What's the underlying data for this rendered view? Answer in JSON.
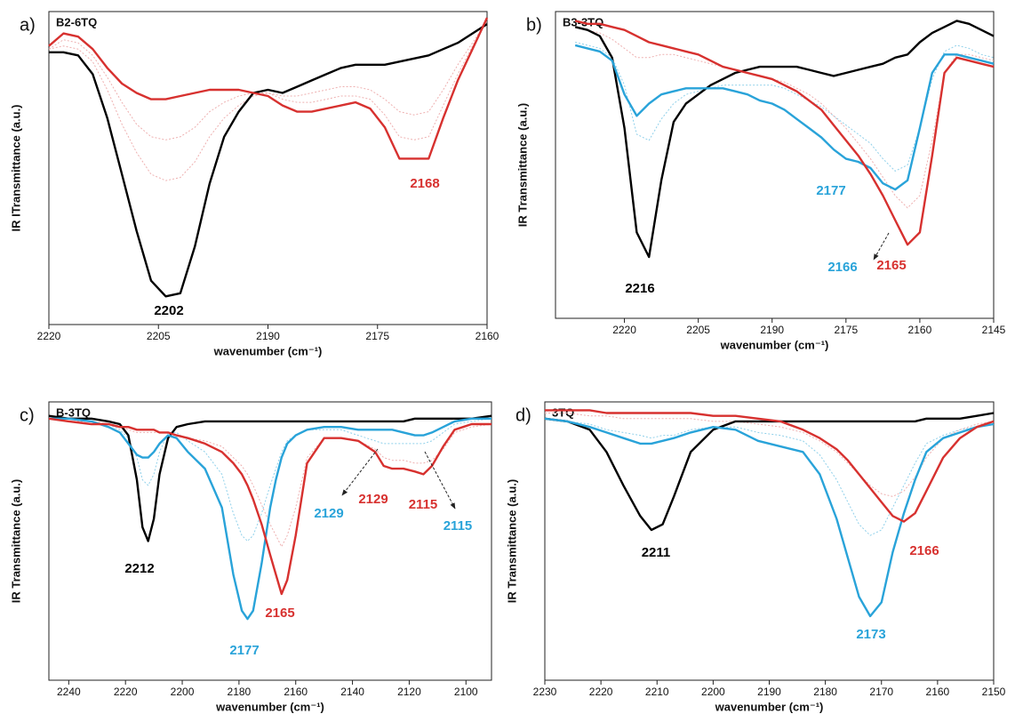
{
  "chart_data": [
    {
      "type": "line",
      "panel_label": "a)",
      "title": "B2-6TQ",
      "x_label": "wavenumber (cm⁻¹)",
      "y_label": "IR ITransmittance (a.u.)",
      "x": [
        2220,
        2218,
        2216,
        2214,
        2212,
        2210,
        2208,
        2206,
        2204,
        2202,
        2200,
        2198,
        2196,
        2194,
        2192,
        2190,
        2188,
        2186,
        2184,
        2182,
        2180,
        2178,
        2176,
        2174,
        2172,
        2170,
        2168,
        2166,
        2164,
        2162,
        2160
      ],
      "xlim": [
        2220,
        2160
      ],
      "xticks": [
        2220,
        2205,
        2190,
        2175,
        2160
      ],
      "ylim": [
        0,
        100
      ],
      "series": [
        {
          "color": "#eeb0b0",
          "style": "dotted",
          "values": [
            88,
            89,
            88,
            84,
            75,
            64,
            55,
            48,
            46,
            47,
            52,
            60,
            66,
            70,
            73,
            74,
            73,
            73,
            74,
            75,
            76,
            76,
            75,
            72,
            68,
            67,
            68,
            75,
            83,
            90,
            97
          ]
        },
        {
          "color": "#eeb0b0",
          "style": "dotted",
          "values": [
            88,
            91,
            90,
            86,
            79,
            71,
            64,
            60,
            59,
            60,
            63,
            68,
            71,
            73,
            74,
            74,
            72,
            71,
            71,
            72,
            73,
            73,
            72,
            67,
            60,
            59,
            60,
            70,
            80,
            89,
            97
          ]
        },
        {
          "color": "#000000",
          "style": "solid",
          "values": [
            87,
            87,
            86,
            80,
            66,
            48,
            30,
            14,
            9,
            10,
            25,
            45,
            60,
            68,
            74,
            75,
            74,
            76,
            78,
            80,
            82,
            83,
            83,
            83,
            84,
            85,
            86,
            88,
            90,
            93,
            96
          ]
        },
        {
          "color": "#d7312f",
          "style": "solid",
          "values": [
            89,
            93,
            92,
            88,
            82,
            77,
            74,
            72,
            72,
            73,
            74,
            75,
            75,
            75,
            74,
            73,
            70,
            68,
            68,
            69,
            70,
            71,
            69,
            63,
            53,
            53,
            53,
            66,
            78,
            88,
            98
          ]
        }
      ],
      "annotations": [
        {
          "text": "2202",
          "color": "#000000"
        },
        {
          "text": "2168",
          "color": "#d7312f"
        }
      ]
    },
    {
      "type": "line",
      "panel_label": "b)",
      "title": "B3-3TQ",
      "x_label": "wavenumber (cm⁻¹)",
      "y_label": "IR Transmittance (a.u.)",
      "x": [
        2230,
        2227.5,
        2225,
        2222.5,
        2220,
        2217.5,
        2215,
        2212.5,
        2210,
        2207.5,
        2205,
        2202.5,
        2200,
        2197.5,
        2195,
        2192.5,
        2190,
        2187.5,
        2185,
        2182.5,
        2180,
        2177.5,
        2175,
        2172.5,
        2170,
        2167.5,
        2165,
        2162.5,
        2160,
        2157.5,
        2155,
        2152.5,
        2150,
        2147.5,
        2145
      ],
      "xlim": [
        2234,
        2145
      ],
      "xticks": [
        2220,
        2205,
        2190,
        2175,
        2160,
        2145
      ],
      "ylim": [
        0,
        100
      ],
      "series": [
        {
          "color": "#8fd0ea",
          "style": "dotted",
          "values": [
            90,
            89,
            88,
            85,
            76,
            60,
            58,
            65,
            70,
            73,
            74,
            75,
            76,
            76,
            76,
            76,
            76,
            75,
            73,
            71,
            69,
            66,
            63,
            60,
            57,
            52,
            48,
            50,
            62,
            78,
            87,
            89,
            88,
            86,
            85
          ]
        },
        {
          "color": "#eeb0b0",
          "style": "dotted",
          "values": [
            95,
            94,
            93,
            91,
            88,
            85,
            85,
            86,
            86,
            85,
            84,
            83,
            82,
            81,
            80,
            79,
            78,
            77,
            75,
            73,
            70,
            66,
            62,
            57,
            52,
            46,
            40,
            36,
            40,
            58,
            80,
            86,
            86,
            85,
            84
          ]
        },
        {
          "color": "#000000",
          "style": "solid",
          "values": [
            95,
            94,
            92,
            85,
            62,
            28,
            20,
            45,
            64,
            70,
            73,
            76,
            78,
            80,
            81,
            82,
            82,
            82,
            82,
            81,
            80,
            79,
            80,
            81,
            82,
            83,
            85,
            86,
            90,
            93,
            95,
            97,
            96,
            94,
            92
          ]
        },
        {
          "color": "#29a3d9",
          "style": "solid",
          "values": [
            89,
            88,
            87,
            84,
            73,
            66,
            70,
            73,
            74,
            75,
            75,
            75,
            75,
            74,
            73,
            71,
            70,
            68,
            65,
            62,
            59,
            55,
            52,
            51,
            49,
            44,
            42,
            45,
            62,
            80,
            86,
            86,
            85,
            84,
            83
          ]
        },
        {
          "color": "#d7312f",
          "style": "solid",
          "values": [
            97,
            96,
            96,
            95,
            94,
            92,
            90,
            89,
            88,
            87,
            86,
            84,
            82,
            81,
            80,
            79,
            78,
            76,
            74,
            71,
            68,
            63,
            58,
            53,
            47,
            40,
            32,
            24,
            28,
            53,
            80,
            85,
            84,
            83,
            82
          ]
        }
      ],
      "annotations": [
        {
          "text": "2216",
          "color": "#000000"
        },
        {
          "text": "2177",
          "color": "#29a3d9"
        },
        {
          "text": "2166",
          "color": "#29a3d9"
        },
        {
          "text": "2165",
          "color": "#d7312f"
        }
      ]
    },
    {
      "type": "line",
      "panel_label": "c)",
      "title": "B-3TQ",
      "x_label": "wavenumber (cm⁻¹)",
      "y_label": "IR Transmittance (a.u.)",
      "x": [
        2247,
        2240,
        2232,
        2226,
        2222,
        2219,
        2216,
        2214,
        2212,
        2210,
        2208,
        2205,
        2202,
        2198,
        2192,
        2186,
        2182,
        2179,
        2177,
        2175,
        2172,
        2169,
        2167,
        2165,
        2163,
        2160,
        2156,
        2150,
        2144,
        2138,
        2132,
        2129,
        2126,
        2122,
        2118,
        2115,
        2112,
        2108,
        2104,
        2098,
        2091
      ],
      "xlim": [
        2247,
        2091
      ],
      "xticks": [
        2240,
        2220,
        2200,
        2180,
        2160,
        2140,
        2120,
        2100
      ],
      "ylim": [
        0,
        100
      ],
      "series": [
        {
          "color": "#8fd0ea",
          "style": "dotted",
          "values": [
            94,
            94,
            93,
            92,
            90,
            87,
            80,
            72,
            70,
            74,
            82,
            89,
            89,
            86,
            82,
            74,
            60,
            52,
            50,
            52,
            60,
            70,
            76,
            82,
            86,
            88,
            90,
            90,
            90,
            88,
            86,
            85,
            85,
            85,
            85,
            85,
            86,
            89,
            92,
            93,
            94
          ]
        },
        {
          "color": "#eeb0b0",
          "style": "dotted",
          "values": [
            94,
            93,
            93,
            92,
            91,
            90,
            89,
            89,
            89,
            89,
            89,
            89,
            88,
            87,
            86,
            84,
            80,
            77,
            74,
            70,
            63,
            56,
            52,
            48,
            52,
            62,
            80,
            87,
            87,
            86,
            83,
            80,
            79,
            79,
            78,
            78,
            79,
            83,
            89,
            91,
            92
          ]
        },
        {
          "color": "#000000",
          "style": "solid",
          "values": [
            95,
            94,
            94,
            93,
            92,
            88,
            72,
            55,
            50,
            58,
            74,
            87,
            91,
            92,
            93,
            93,
            93,
            93,
            93,
            93,
            93,
            93,
            93,
            93,
            93,
            93,
            93,
            93,
            93,
            93,
            93,
            93,
            93,
            93,
            94,
            94,
            94,
            94,
            94,
            94,
            95
          ]
        },
        {
          "color": "#29a3d9",
          "style": "solid",
          "values": [
            94,
            94,
            93,
            91,
            89,
            85,
            81,
            80,
            80,
            82,
            85,
            88,
            87,
            82,
            76,
            62,
            38,
            25,
            22,
            25,
            42,
            62,
            72,
            80,
            85,
            88,
            90,
            91,
            91,
            90,
            90,
            90,
            90,
            89,
            88,
            88,
            89,
            91,
            93,
            94,
            94
          ]
        },
        {
          "color": "#d7312f",
          "style": "solid",
          "values": [
            94,
            93,
            92,
            92,
            91,
            91,
            90,
            90,
            90,
            90,
            89,
            89,
            88,
            87,
            85,
            82,
            78,
            74,
            70,
            65,
            56,
            45,
            38,
            31,
            36,
            52,
            78,
            87,
            87,
            86,
            82,
            77,
            76,
            76,
            75,
            74,
            77,
            84,
            90,
            92,
            92
          ]
        }
      ],
      "annotations": [
        {
          "text": "2212",
          "color": "#000000"
        },
        {
          "text": "2165",
          "color": "#d7312f"
        },
        {
          "text": "2177",
          "color": "#29a3d9"
        },
        {
          "text": "2129",
          "color": "#29a3d9"
        },
        {
          "text": "2129",
          "color": "#d7312f"
        },
        {
          "text": "2115",
          "color": "#d7312f"
        },
        {
          "text": "2115",
          "color": "#29a3d9"
        }
      ]
    },
    {
      "type": "line",
      "panel_label": "d)",
      "title": "3TQ",
      "x_label": "wavenumber (cm⁻¹)",
      "y_label": "IR Transmittance (a.u.)",
      "x": [
        2230,
        2226,
        2222,
        2219,
        2216,
        2213,
        2211,
        2209,
        2207,
        2204,
        2200,
        2196,
        2192,
        2188,
        2184,
        2181,
        2178,
        2176,
        2174,
        2172,
        2170,
        2168,
        2166,
        2164,
        2162,
        2159,
        2156,
        2153,
        2150
      ],
      "xlim": [
        2230,
        2150
      ],
      "xticks": [
        2230,
        2220,
        2210,
        2200,
        2190,
        2180,
        2170,
        2160,
        2150
      ],
      "ylim": [
        0,
        100
      ],
      "series": [
        {
          "color": "#8fd0ea",
          "style": "dotted",
          "values": [
            94,
            93,
            92,
            90,
            89,
            88,
            87,
            88,
            88,
            90,
            91,
            91,
            89,
            88,
            86,
            81,
            72,
            64,
            56,
            52,
            54,
            62,
            70,
            78,
            85,
            88,
            90,
            91,
            92
          ]
        },
        {
          "color": "#eeb0b0",
          "style": "dotted",
          "values": [
            96,
            96,
            95,
            95,
            94,
            94,
            94,
            94,
            94,
            94,
            93,
            93,
            92,
            91,
            89,
            86,
            82,
            78,
            74,
            70,
            67,
            66,
            68,
            73,
            80,
            87,
            90,
            92,
            93
          ]
        },
        {
          "color": "#000000",
          "style": "solid",
          "values": [
            94,
            93,
            90,
            82,
            70,
            59,
            54,
            56,
            66,
            82,
            90,
            93,
            93,
            93,
            93,
            93,
            93,
            93,
            93,
            93,
            93,
            93,
            93,
            93,
            94,
            94,
            94,
            95,
            96
          ]
        },
        {
          "color": "#29a3d9",
          "style": "solid",
          "values": [
            94,
            93,
            91,
            89,
            87,
            85,
            85,
            86,
            87,
            89,
            91,
            90,
            86,
            84,
            82,
            74,
            58,
            44,
            30,
            23,
            28,
            46,
            60,
            72,
            82,
            87,
            89,
            91,
            92
          ]
        },
        {
          "color": "#d7312f",
          "style": "solid",
          "values": [
            97,
            97,
            97,
            96,
            96,
            96,
            96,
            96,
            96,
            96,
            95,
            95,
            94,
            93,
            90,
            87,
            83,
            79,
            74,
            69,
            64,
            59,
            57,
            60,
            68,
            80,
            87,
            91,
            93
          ]
        }
      ],
      "annotations": [
        {
          "text": "2211",
          "color": "#000000"
        },
        {
          "text": "2166",
          "color": "#d7312f"
        },
        {
          "text": "2173",
          "color": "#29a3d9"
        }
      ]
    }
  ]
}
